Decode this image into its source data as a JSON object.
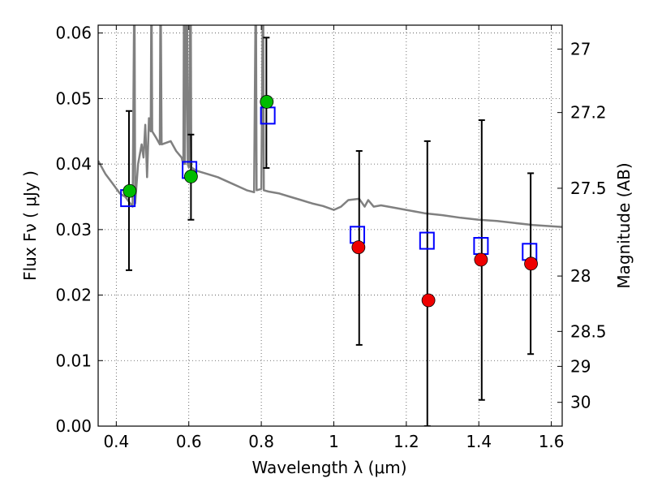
{
  "chart_data": {
    "type": "scatter",
    "xlabel": "Wavelength  λ (μm)",
    "ylabel": "Flux  Fν  ( μJy )",
    "ylabel_right": "Magnitude (AB)",
    "xlim": [
      0.35,
      1.63
    ],
    "ylim": [
      0.0,
      0.0612
    ],
    "grid": true,
    "x_ticks": [
      0.4,
      0.6,
      0.8,
      1.0,
      1.2,
      1.4,
      1.6
    ],
    "x_tick_labels": [
      "0.4",
      "0.6",
      "0.8",
      "1",
      "1.2",
      "1.4",
      "1.6"
    ],
    "y_ticks": [
      0.0,
      0.01,
      0.02,
      0.03,
      0.04,
      0.05,
      0.06
    ],
    "y_tick_labels": [
      "0.00",
      "0.01",
      "0.02",
      "0.03",
      "0.04",
      "0.05",
      "0.06"
    ],
    "right_ticks": [
      27,
      27.2,
      27.5,
      28,
      28.5,
      29,
      30
    ],
    "right_tick_labels": [
      "27",
      "27.2",
      "27.5",
      "28",
      "28.5",
      "29",
      "30"
    ],
    "series": [
      {
        "kind": "errorbar",
        "color": "#000000",
        "points": [
          {
            "x": 0.435,
            "low": 0.0238,
            "high": 0.0481
          },
          {
            "x": 0.606,
            "low": 0.0315,
            "high": 0.0445
          },
          {
            "x": 0.814,
            "low": 0.0394,
            "high": 0.0593
          },
          {
            "x": 1.07,
            "low": 0.0124,
            "high": 0.042
          },
          {
            "x": 1.258,
            "low": 0.0,
            "high": 0.0435
          },
          {
            "x": 1.408,
            "low": 0.004,
            "high": 0.0467
          },
          {
            "x": 1.543,
            "low": 0.011,
            "high": 0.0386
          }
        ]
      },
      {
        "kind": "open-square",
        "color": "#0000ff",
        "points": [
          {
            "x": 0.432,
            "y": 0.0348
          },
          {
            "x": 0.602,
            "y": 0.0391
          },
          {
            "x": 0.818,
            "y": 0.0474
          },
          {
            "x": 1.065,
            "y": 0.0292
          },
          {
            "x": 1.257,
            "y": 0.0283
          },
          {
            "x": 1.406,
            "y": 0.0275
          },
          {
            "x": 1.54,
            "y": 0.0266
          }
        ]
      },
      {
        "kind": "filled-circle",
        "color": "#00bb00",
        "points": [
          {
            "x": 0.437,
            "y": 0.0359
          },
          {
            "x": 0.606,
            "y": 0.0381
          },
          {
            "x": 0.815,
            "y": 0.0495
          }
        ]
      },
      {
        "kind": "filled-circle",
        "color": "#ee0000",
        "points": [
          {
            "x": 1.068,
            "y": 0.0273
          },
          {
            "x": 1.261,
            "y": 0.0192
          },
          {
            "x": 1.406,
            "y": 0.0254
          },
          {
            "x": 1.544,
            "y": 0.0248
          }
        ]
      },
      {
        "kind": "line",
        "color": "#808080",
        "points": [
          [
            0.35,
            0.0405
          ],
          [
            0.37,
            0.0385
          ],
          [
            0.39,
            0.037
          ],
          [
            0.41,
            0.0355
          ],
          [
            0.425,
            0.035
          ],
          [
            0.445,
            0.0335
          ],
          [
            0.45,
            0.07
          ],
          [
            0.452,
            0.034
          ],
          [
            0.46,
            0.04
          ],
          [
            0.47,
            0.043
          ],
          [
            0.475,
            0.041
          ],
          [
            0.48,
            0.046
          ],
          [
            0.485,
            0.038
          ],
          [
            0.49,
            0.047
          ],
          [
            0.495,
            0.045
          ],
          [
            0.497,
            0.07
          ],
          [
            0.499,
            0.045
          ],
          [
            0.51,
            0.044
          ],
          [
            0.52,
            0.043
          ],
          [
            0.522,
            0.07
          ],
          [
            0.525,
            0.043
          ],
          [
            0.55,
            0.0435
          ],
          [
            0.565,
            0.042
          ],
          [
            0.58,
            0.041
          ],
          [
            0.585,
            0.04
          ],
          [
            0.587,
            0.07
          ],
          [
            0.589,
            0.04
          ],
          [
            0.595,
            0.07
          ],
          [
            0.597,
            0.04
          ],
          [
            0.6,
            0.0395
          ],
          [
            0.605,
            0.07
          ],
          [
            0.607,
            0.0395
          ],
          [
            0.62,
            0.039
          ],
          [
            0.65,
            0.0385
          ],
          [
            0.68,
            0.038
          ],
          [
            0.7,
            0.0375
          ],
          [
            0.72,
            0.037
          ],
          [
            0.74,
            0.0365
          ],
          [
            0.76,
            0.036
          ],
          [
            0.78,
            0.0357
          ],
          [
            0.785,
            0.07
          ],
          [
            0.787,
            0.036
          ],
          [
            0.8,
            0.0362
          ],
          [
            0.805,
            0.07
          ],
          [
            0.807,
            0.036
          ],
          [
            0.82,
            0.0358
          ],
          [
            0.85,
            0.0355
          ],
          [
            0.88,
            0.035
          ],
          [
            0.91,
            0.0345
          ],
          [
            0.94,
            0.034
          ],
          [
            0.97,
            0.0336
          ],
          [
            1.0,
            0.033
          ],
          [
            1.02,
            0.0335
          ],
          [
            1.04,
            0.0345
          ],
          [
            1.07,
            0.0347
          ],
          [
            1.085,
            0.0335
          ],
          [
            1.095,
            0.0345
          ],
          [
            1.11,
            0.0335
          ],
          [
            1.13,
            0.0337
          ],
          [
            1.16,
            0.0334
          ],
          [
            1.2,
            0.033
          ],
          [
            1.25,
            0.0325
          ],
          [
            1.3,
            0.0322
          ],
          [
            1.35,
            0.0318
          ],
          [
            1.4,
            0.0315
          ],
          [
            1.45,
            0.0313
          ],
          [
            1.5,
            0.031
          ],
          [
            1.55,
            0.0307
          ],
          [
            1.6,
            0.0305
          ],
          [
            1.63,
            0.0304
          ]
        ]
      }
    ]
  }
}
